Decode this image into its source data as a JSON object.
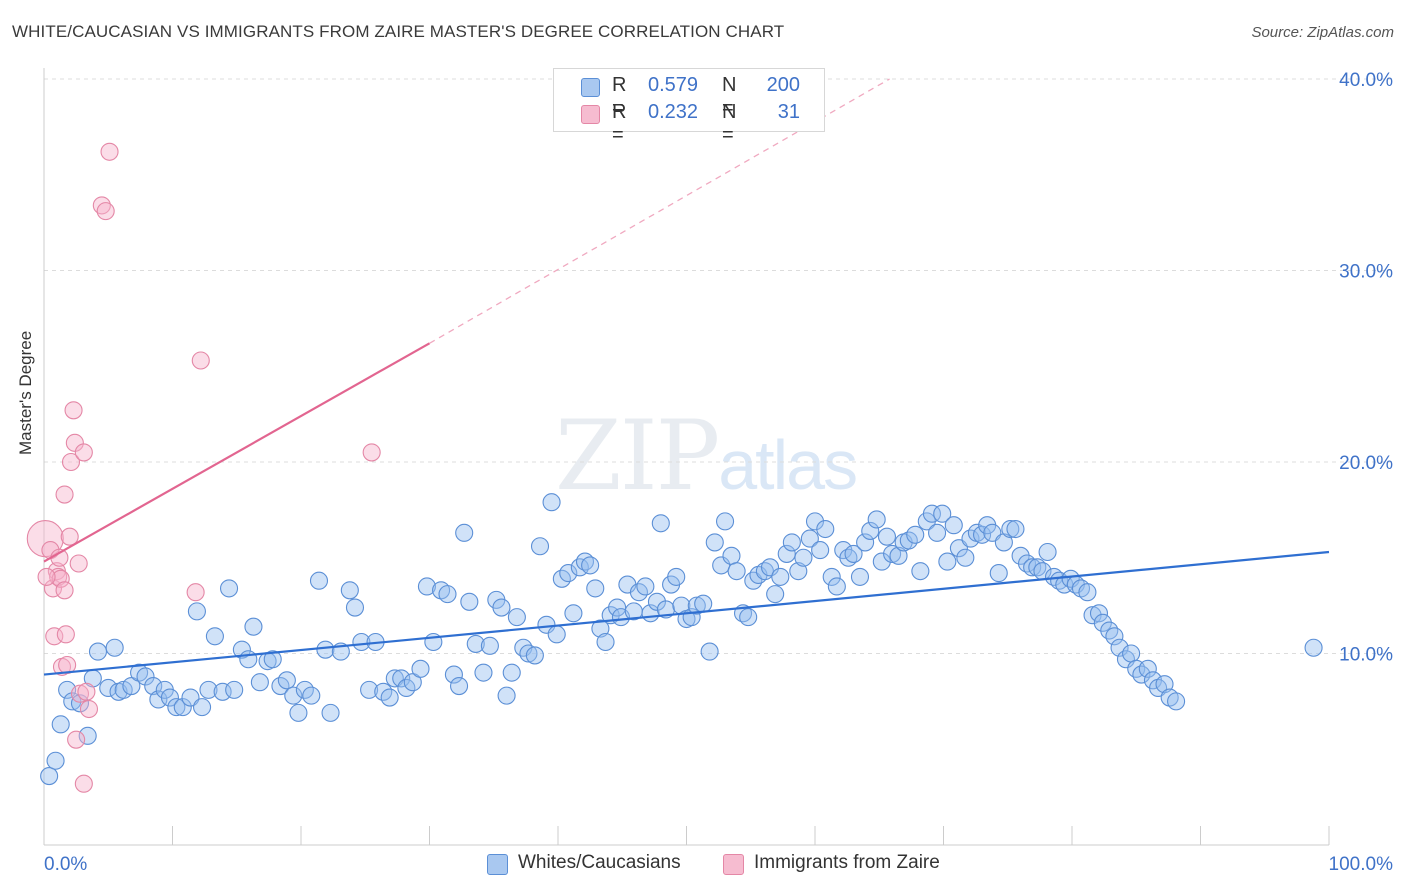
{
  "title": "WHITE/CAUCASIAN VS IMMIGRANTS FROM ZAIRE MASTER'S DEGREE CORRELATION CHART",
  "source": "Source: ZipAtlas.com",
  "watermark": {
    "zip": "ZIP",
    "atlas": "atlas"
  },
  "legend_stats": [
    {
      "r_label": "R =",
      "r_value": "0.579",
      "n_label": "N =",
      "n_value": "200",
      "color": "#a9c8f0",
      "stroke": "#5b8fd6"
    },
    {
      "r_label": "R =",
      "r_value": "0.232",
      "n_label": "N =",
      "n_value": "31",
      "color": "#f6bcd0",
      "stroke": "#e487a6"
    }
  ],
  "bottom_legend": [
    {
      "label": "Whites/Caucasians",
      "color": "#a9c8f0",
      "stroke": "#5b8fd6"
    },
    {
      "label": "Immigrants from Zaire",
      "color": "#f6bcd0",
      "stroke": "#e487a6"
    }
  ],
  "chart_data": {
    "type": "scatter",
    "title": "WHITE/CAUCASIAN VS IMMIGRANTS FROM ZAIRE MASTER'S DEGREE CORRELATION CHART",
    "xlabel": "",
    "ylabel": "Master's Degree",
    "xlim": [
      0,
      100
    ],
    "ylim": [
      0,
      40
    ],
    "x_tick_labels": [
      "0.0%",
      "100.0%"
    ],
    "y_tick_labels": [
      "10.0%",
      "20.0%",
      "30.0%",
      "40.0%"
    ],
    "y_ticks": [
      10,
      20,
      30,
      40
    ],
    "grid": true,
    "series": [
      {
        "name": "Whites/Caucasians",
        "color": "#5b8fd6",
        "fill": "rgba(150,190,240,0.45)",
        "trend": {
          "x0": 0,
          "y0": 8.9,
          "x1": 100,
          "y1": 15.3
        },
        "points": [
          [
            0.4,
            3.6
          ],
          [
            0.9,
            4.4
          ],
          [
            1.3,
            6.3
          ],
          [
            1.8,
            8.1
          ],
          [
            2.2,
            7.5
          ],
          [
            2.8,
            7.4
          ],
          [
            3.4,
            5.7
          ],
          [
            3.8,
            8.7
          ],
          [
            4.2,
            10.1
          ],
          [
            5.0,
            8.2
          ],
          [
            5.5,
            10.3
          ],
          [
            5.8,
            8.0
          ],
          [
            6.2,
            8.1
          ],
          [
            6.8,
            8.3
          ],
          [
            7.4,
            9.0
          ],
          [
            7.9,
            8.8
          ],
          [
            8.5,
            8.3
          ],
          [
            8.9,
            7.6
          ],
          [
            9.4,
            8.1
          ],
          [
            9.8,
            7.7
          ],
          [
            10.3,
            7.2
          ],
          [
            10.8,
            7.2
          ],
          [
            11.4,
            7.7
          ],
          [
            11.9,
            12.2
          ],
          [
            12.3,
            7.2
          ],
          [
            12.8,
            8.1
          ],
          [
            13.3,
            10.9
          ],
          [
            13.9,
            8.0
          ],
          [
            14.4,
            13.4
          ],
          [
            14.8,
            8.1
          ],
          [
            15.4,
            10.2
          ],
          [
            15.9,
            9.7
          ],
          [
            16.3,
            11.4
          ],
          [
            16.8,
            8.5
          ],
          [
            17.4,
            9.6
          ],
          [
            17.8,
            9.7
          ],
          [
            18.4,
            8.3
          ],
          [
            18.9,
            8.6
          ],
          [
            19.4,
            7.8
          ],
          [
            19.8,
            6.9
          ],
          [
            20.3,
            8.1
          ],
          [
            20.8,
            7.8
          ],
          [
            21.4,
            13.8
          ],
          [
            21.9,
            10.2
          ],
          [
            22.3,
            6.9
          ],
          [
            23.1,
            10.1
          ],
          [
            23.8,
            13.3
          ],
          [
            24.2,
            12.4
          ],
          [
            24.7,
            10.6
          ],
          [
            25.3,
            8.1
          ],
          [
            25.8,
            10.6
          ],
          [
            26.4,
            8.0
          ],
          [
            26.9,
            7.7
          ],
          [
            27.3,
            8.7
          ],
          [
            27.8,
            8.7
          ],
          [
            28.2,
            8.2
          ],
          [
            28.7,
            8.5
          ],
          [
            29.3,
            9.2
          ],
          [
            29.8,
            13.5
          ],
          [
            30.3,
            10.6
          ],
          [
            30.9,
            13.3
          ],
          [
            31.4,
            13.1
          ],
          [
            31.9,
            8.9
          ],
          [
            32.3,
            8.3
          ],
          [
            32.7,
            16.3
          ],
          [
            33.1,
            12.7
          ],
          [
            33.6,
            10.5
          ],
          [
            34.2,
            9.0
          ],
          [
            34.7,
            10.4
          ],
          [
            35.2,
            12.8
          ],
          [
            35.6,
            12.4
          ],
          [
            36.0,
            7.8
          ],
          [
            36.4,
            9.0
          ],
          [
            36.8,
            11.9
          ],
          [
            37.3,
            10.3
          ],
          [
            37.7,
            10.0
          ],
          [
            38.2,
            9.9
          ],
          [
            38.6,
            15.6
          ],
          [
            39.1,
            11.5
          ],
          [
            39.5,
            17.9
          ],
          [
            39.9,
            11.0
          ],
          [
            40.3,
            13.9
          ],
          [
            40.8,
            14.2
          ],
          [
            41.2,
            12.1
          ],
          [
            41.7,
            14.5
          ],
          [
            42.1,
            14.8
          ],
          [
            42.5,
            14.6
          ],
          [
            42.9,
            13.4
          ],
          [
            43.3,
            11.3
          ],
          [
            43.7,
            10.6
          ],
          [
            44.1,
            12.0
          ],
          [
            44.6,
            12.4
          ],
          [
            44.9,
            11.9
          ],
          [
            45.4,
            13.6
          ],
          [
            45.9,
            12.2
          ],
          [
            46.3,
            13.2
          ],
          [
            46.8,
            13.5
          ],
          [
            47.2,
            12.1
          ],
          [
            47.7,
            12.7
          ],
          [
            48.0,
            16.8
          ],
          [
            48.4,
            12.3
          ],
          [
            48.8,
            13.6
          ],
          [
            49.2,
            14.0
          ],
          [
            49.6,
            12.5
          ],
          [
            50.0,
            11.8
          ],
          [
            50.4,
            11.9
          ],
          [
            50.8,
            12.5
          ],
          [
            51.3,
            12.6
          ],
          [
            51.8,
            10.1
          ],
          [
            52.2,
            15.8
          ],
          [
            52.7,
            14.6
          ],
          [
            53.0,
            16.9
          ],
          [
            53.5,
            15.1
          ],
          [
            53.9,
            14.3
          ],
          [
            54.4,
            12.1
          ],
          [
            54.8,
            11.9
          ],
          [
            55.2,
            13.8
          ],
          [
            55.6,
            14.1
          ],
          [
            56.1,
            14.3
          ],
          [
            56.5,
            14.5
          ],
          [
            56.9,
            13.1
          ],
          [
            57.3,
            14.0
          ],
          [
            57.8,
            15.2
          ],
          [
            58.2,
            15.8
          ],
          [
            58.7,
            14.3
          ],
          [
            59.1,
            15.0
          ],
          [
            59.6,
            16.0
          ],
          [
            60.0,
            16.9
          ],
          [
            60.4,
            15.4
          ],
          [
            60.8,
            16.5
          ],
          [
            61.3,
            14.0
          ],
          [
            61.7,
            13.5
          ],
          [
            62.2,
            15.4
          ],
          [
            62.6,
            15.0
          ],
          [
            63.0,
            15.2
          ],
          [
            63.5,
            14.0
          ],
          [
            63.9,
            15.8
          ],
          [
            64.3,
            16.4
          ],
          [
            64.8,
            17.0
          ],
          [
            65.2,
            14.8
          ],
          [
            65.6,
            16.1
          ],
          [
            66.0,
            15.2
          ],
          [
            66.5,
            15.1
          ],
          [
            66.9,
            15.8
          ],
          [
            67.3,
            15.9
          ],
          [
            67.8,
            16.2
          ],
          [
            68.2,
            14.3
          ],
          [
            68.7,
            16.9
          ],
          [
            69.1,
            17.3
          ],
          [
            69.5,
            16.3
          ],
          [
            69.9,
            17.3
          ],
          [
            70.3,
            14.8
          ],
          [
            70.8,
            16.7
          ],
          [
            71.2,
            15.5
          ],
          [
            71.7,
            15.0
          ],
          [
            72.1,
            16.0
          ],
          [
            72.6,
            16.3
          ],
          [
            73.0,
            16.2
          ],
          [
            73.4,
            16.7
          ],
          [
            73.8,
            16.3
          ],
          [
            74.3,
            14.2
          ],
          [
            74.7,
            15.8
          ],
          [
            75.2,
            16.5
          ],
          [
            75.6,
            16.5
          ],
          [
            76.0,
            15.1
          ],
          [
            76.5,
            14.7
          ],
          [
            76.9,
            14.5
          ],
          [
            77.3,
            14.5
          ],
          [
            77.7,
            14.3
          ],
          [
            78.1,
            15.3
          ],
          [
            78.6,
            14.0
          ],
          [
            79.0,
            13.8
          ],
          [
            79.4,
            13.6
          ],
          [
            79.9,
            13.9
          ],
          [
            80.3,
            13.6
          ],
          [
            80.7,
            13.4
          ],
          [
            81.2,
            13.2
          ],
          [
            81.6,
            12.0
          ],
          [
            82.1,
            12.1
          ],
          [
            82.4,
            11.6
          ],
          [
            82.9,
            11.2
          ],
          [
            83.3,
            10.9
          ],
          [
            83.7,
            10.3
          ],
          [
            84.2,
            9.7
          ],
          [
            84.6,
            10.0
          ],
          [
            85.0,
            9.2
          ],
          [
            85.4,
            8.9
          ],
          [
            85.9,
            9.2
          ],
          [
            86.3,
            8.6
          ],
          [
            86.7,
            8.2
          ],
          [
            87.2,
            8.4
          ],
          [
            87.6,
            7.7
          ],
          [
            88.1,
            7.5
          ],
          [
            98.8,
            10.3
          ]
        ]
      },
      {
        "name": "Immigrants from Zaire",
        "color": "#e487a6",
        "fill": "rgba(246,180,205,0.45)",
        "trend": {
          "x0": 0,
          "y0": 14.8,
          "x1": 30,
          "y1": 26.2
        },
        "trend_dashed": {
          "x0": 30,
          "y0": 26.2,
          "x1": 65.8,
          "y1": 40.0
        },
        "points": [
          [
            0.1,
            16.0
          ],
          [
            0.5,
            15.4
          ],
          [
            0.7,
            13.4
          ],
          [
            0.8,
            10.9
          ],
          [
            1.0,
            14.3
          ],
          [
            1.1,
            14.0
          ],
          [
            1.2,
            15.0
          ],
          [
            1.3,
            13.9
          ],
          [
            1.4,
            9.3
          ],
          [
            1.6,
            13.3
          ],
          [
            1.6,
            18.3
          ],
          [
            1.7,
            11.0
          ],
          [
            1.8,
            9.4
          ],
          [
            2.0,
            16.1
          ],
          [
            2.1,
            20.0
          ],
          [
            2.3,
            22.7
          ],
          [
            2.4,
            21.0
          ],
          [
            2.5,
            5.5
          ],
          [
            2.7,
            14.7
          ],
          [
            2.8,
            7.9
          ],
          [
            3.1,
            3.2
          ],
          [
            3.1,
            20.5
          ],
          [
            3.3,
            8.0
          ],
          [
            3.5,
            7.1
          ],
          [
            4.5,
            33.4
          ],
          [
            4.8,
            33.1
          ],
          [
            5.1,
            36.2
          ],
          [
            11.8,
            13.2
          ],
          [
            12.2,
            25.3
          ],
          [
            25.5,
            20.5
          ],
          [
            0.2,
            14.0
          ]
        ]
      }
    ]
  }
}
